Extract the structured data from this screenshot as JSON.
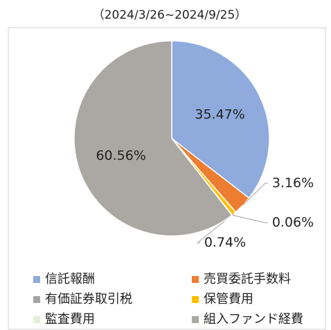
{
  "chart_data": {
    "type": "pie",
    "title": "（2024/3/26~2024/9/25）",
    "categories": [
      "信託報酬",
      "売買委託手数料",
      "有価証券取引税",
      "保管費用",
      "監査費用",
      "組入ファンド経費"
    ],
    "values": [
      35.47,
      3.16,
      0,
      0.74,
      0.06,
      60.56
    ],
    "value_labels": [
      "35.47%",
      "3.16%",
      null,
      "0.74%",
      "0.06%",
      "60.56%"
    ],
    "colors": [
      "#8faadc",
      "#ed7d31",
      "#a5a5a5",
      "#ffc000",
      "#e2f0d9",
      "#aba7a2"
    ],
    "start_angle": 0,
    "direction": "clockwise",
    "legend": "bottom"
  }
}
